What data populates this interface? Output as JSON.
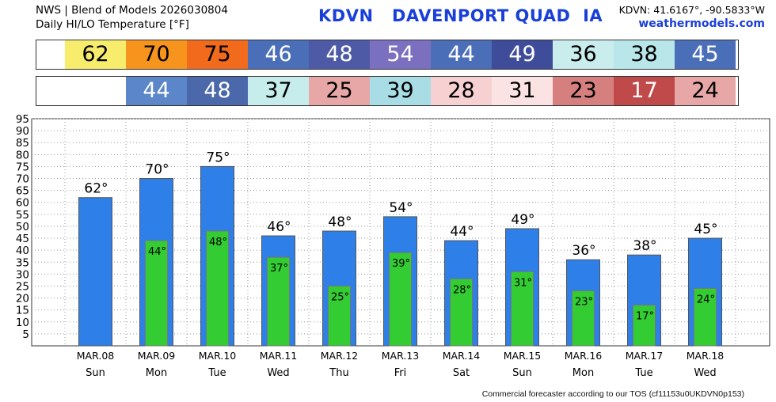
{
  "header": {
    "line1": "NWS | Blend of Models 2026030804",
    "line2": "Daily HI/LO Temperature [°F]",
    "title": "KDVN   DAVENPORT QUAD  IA",
    "coords": "KDVN: 41.6167°, -90.5833°W",
    "site": "weathermodels.com"
  },
  "footer": "Commercial forecaster according to our TOS (cf11153u0UKDVN0p153)",
  "colors": {
    "high_bar": "#2e7fe8",
    "low_bar": "#33cc33",
    "title_blue": "#1a3fd9",
    "strip_hi": [
      "#f7ec6c",
      "#f7941d",
      "#f26a1b",
      "#4a6eb8",
      "#4f5aa6",
      "#7b6fbf",
      "#4a6eb8",
      "#3e4c99",
      "#c9ecec",
      "#b9e6e8",
      "#4a6eb8"
    ],
    "strip_lo": [
      "#5b86c9",
      "#4a68aa",
      "#c6ecec",
      "#e8a7a7",
      "#a9dde6",
      "#f7d1d1",
      "#fbe3e3",
      "#d67f7f",
      "#c04a4a",
      "#e8a7a7"
    ]
  },
  "chart_data": {
    "type": "bar",
    "categories": [
      "MAR.08",
      "MAR.09",
      "MAR.10",
      "MAR.11",
      "MAR.12",
      "MAR.13",
      "MAR.14",
      "MAR.15",
      "MAR.16",
      "MAR.17",
      "MAR.18"
    ],
    "weekdays": [
      "Sun",
      "Mon",
      "Tue",
      "Wed",
      "Thu",
      "Fri",
      "Sat",
      "Sun",
      "Mon",
      "Tue",
      "Wed"
    ],
    "series": [
      {
        "values": [
          62,
          70,
          75,
          46,
          48,
          54,
          44,
          49,
          36,
          38,
          45
        ]
      },
      {
        "values": [
          null,
          44,
          48,
          37,
          25,
          39,
          28,
          31,
          23,
          17,
          24
        ]
      }
    ],
    "ylim": [
      0,
      95
    ],
    "yticks": [
      5,
      10,
      15,
      20,
      25,
      30,
      35,
      40,
      45,
      50,
      55,
      60,
      65,
      70,
      75,
      80,
      85,
      90,
      95
    ],
    "grid": true,
    "label_suffix": "°"
  }
}
